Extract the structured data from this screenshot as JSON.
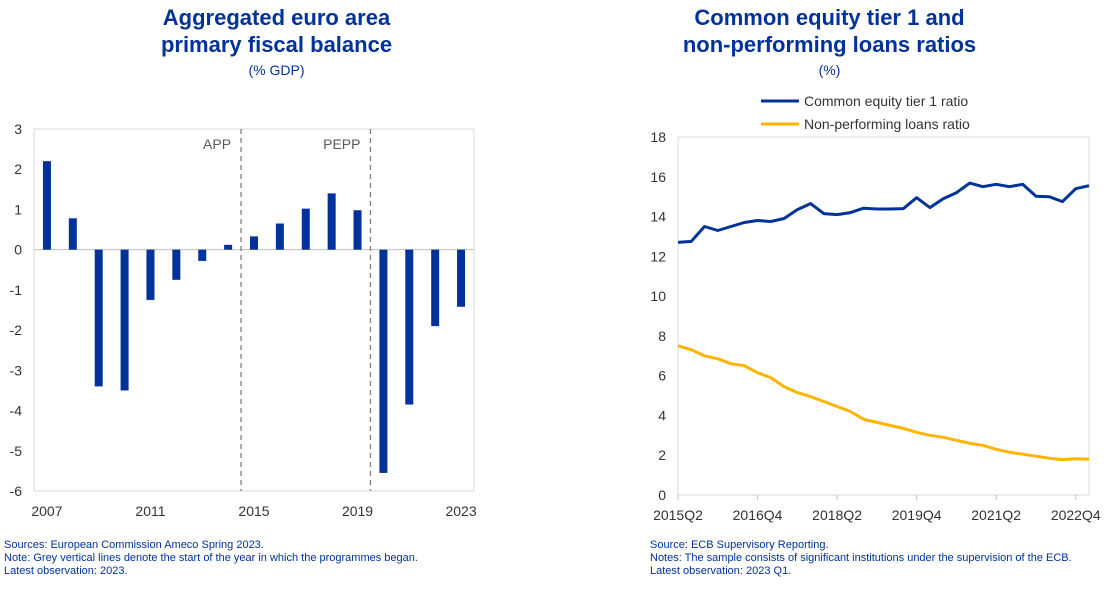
{
  "chart_data": [
    {
      "type": "bar",
      "title": "Aggregated euro area primary fiscal balance",
      "title_lines": [
        "Aggregated euro area",
        "primary fiscal balance"
      ],
      "subtitle": "(% GDP)",
      "categories": [
        "2007",
        "2008",
        "2009",
        "2010",
        "2011",
        "2012",
        "2013",
        "2014",
        "2015",
        "2016",
        "2017",
        "2018",
        "2019",
        "2020",
        "2021",
        "2022",
        "2023"
      ],
      "values": [
        2.2,
        0.78,
        -3.4,
        -3.5,
        -1.25,
        -0.75,
        -0.28,
        0.12,
        0.33,
        0.65,
        1.02,
        1.4,
        0.98,
        -5.55,
        -3.85,
        -1.9,
        -1.42
      ],
      "x_tick_labels": [
        "2007",
        "2011",
        "2015",
        "2019",
        "2023"
      ],
      "ylim": [
        -6,
        3
      ],
      "y_ticks": [
        "3",
        "2",
        "1",
        "0",
        "-1",
        "-2",
        "-3",
        "-4",
        "-5",
        "-6"
      ],
      "xlabel": "",
      "ylabel": "",
      "vlines": [
        {
          "label": "APP",
          "between": [
            "2014",
            "2015"
          ]
        },
        {
          "label": "PEPP",
          "between": [
            "2019",
            "2020"
          ]
        }
      ],
      "bar_color": "#003299",
      "notes": [
        "Sources: European Commission Ameco Spring 2023.",
        "Note: Grey vertical lines denote the start of the year in which the programmes began.",
        "Latest observation: 2023."
      ]
    },
    {
      "type": "line",
      "title": "Common equity tier 1 and non-performing loans ratios",
      "title_lines": [
        "Common equity tier 1 and",
        "non-performing loans ratios"
      ],
      "subtitle": "(%)",
      "x": [
        "2015Q2",
        "2015Q3",
        "2015Q4",
        "2016Q1",
        "2016Q2",
        "2016Q3",
        "2016Q4",
        "2017Q1",
        "2017Q2",
        "2017Q3",
        "2017Q4",
        "2018Q1",
        "2018Q2",
        "2018Q3",
        "2018Q4",
        "2019Q1",
        "2019Q2",
        "2019Q3",
        "2019Q4",
        "2020Q1",
        "2020Q2",
        "2020Q3",
        "2020Q4",
        "2021Q1",
        "2021Q2",
        "2021Q3",
        "2021Q4",
        "2022Q1",
        "2022Q2",
        "2022Q3",
        "2022Q4",
        "2023Q1"
      ],
      "x_tick_labels": [
        "2015Q2",
        "2016Q4",
        "2018Q2",
        "2019Q4",
        "2021Q2",
        "2022Q4"
      ],
      "ylim": [
        0,
        18
      ],
      "y_ticks": [
        "18",
        "16",
        "14",
        "12",
        "10",
        "8",
        "6",
        "4",
        "2",
        "0"
      ],
      "xlabel": "",
      "ylabel": "",
      "legend_position": "top",
      "series": [
        {
          "name": "Common equity tier 1 ratio",
          "color": "#003299",
          "values": [
            12.7,
            12.75,
            13.5,
            13.3,
            13.5,
            13.7,
            13.8,
            13.75,
            13.9,
            14.35,
            14.65,
            14.15,
            14.1,
            14.2,
            14.42,
            14.38,
            14.38,
            14.4,
            14.95,
            14.45,
            14.9,
            15.2,
            15.68,
            15.5,
            15.62,
            15.5,
            15.62,
            15.02,
            15.0,
            14.75,
            15.4,
            15.55
          ]
        },
        {
          "name": "Non-performing loans ratio",
          "color": "#FFB400",
          "values": [
            7.5,
            7.3,
            7.0,
            6.85,
            6.6,
            6.5,
            6.15,
            5.9,
            5.45,
            5.15,
            4.95,
            4.7,
            4.45,
            4.2,
            3.8,
            3.65,
            3.5,
            3.35,
            3.15,
            3.0,
            2.9,
            2.75,
            2.6,
            2.5,
            2.3,
            2.15,
            2.05,
            1.95,
            1.85,
            1.78,
            1.82,
            1.8
          ]
        }
      ],
      "notes": [
        "Source: ECB Supervisory Reporting.",
        "Notes: The sample consists of significant institutions under the supervision of the ECB.",
        "Latest observation: 2023 Q1."
      ]
    }
  ]
}
